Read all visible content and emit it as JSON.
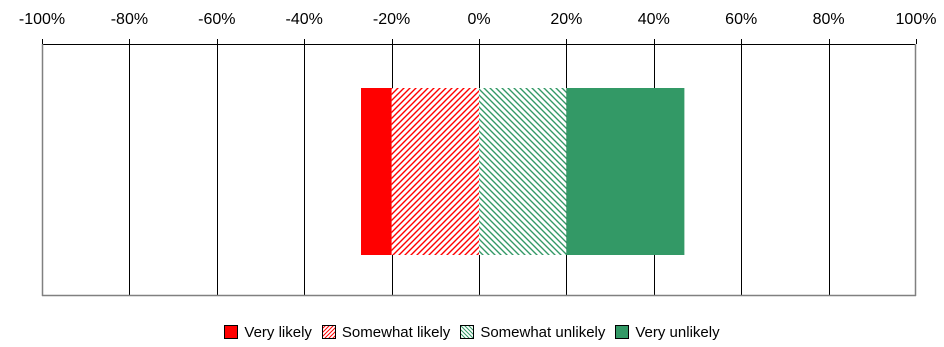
{
  "chart_data": {
    "type": "bar",
    "orientation": "horizontal",
    "stacked": "diverging",
    "title": "",
    "xlabel": "",
    "ylabel": "",
    "xlim": [
      -100,
      100
    ],
    "x_ticks": [
      "-100%",
      "-80%",
      "-60%",
      "-40%",
      "-20%",
      "0%",
      "20%",
      "40%",
      "60%",
      "80%",
      "100%"
    ],
    "x_tick_values": [
      -100,
      -80,
      -60,
      -40,
      -20,
      0,
      20,
      40,
      60,
      80,
      100
    ],
    "grid": true,
    "legend_position": "bottom",
    "categories": [
      ""
    ],
    "series": [
      {
        "name": "Very likely",
        "values": [
          -7
        ],
        "side": "negative",
        "color": "#ff0000",
        "pattern": "solid"
      },
      {
        "name": "Somewhat likely",
        "values": [
          -20
        ],
        "side": "negative",
        "color": "#ff0000",
        "pattern": "hatched"
      },
      {
        "name": "Somewhat unlikely",
        "values": [
          20
        ],
        "side": "positive",
        "color": "#339966",
        "pattern": "hatched"
      },
      {
        "name": "Very unlikely",
        "values": [
          27
        ],
        "side": "positive",
        "color": "#339966",
        "pattern": "solid"
      }
    ]
  }
}
